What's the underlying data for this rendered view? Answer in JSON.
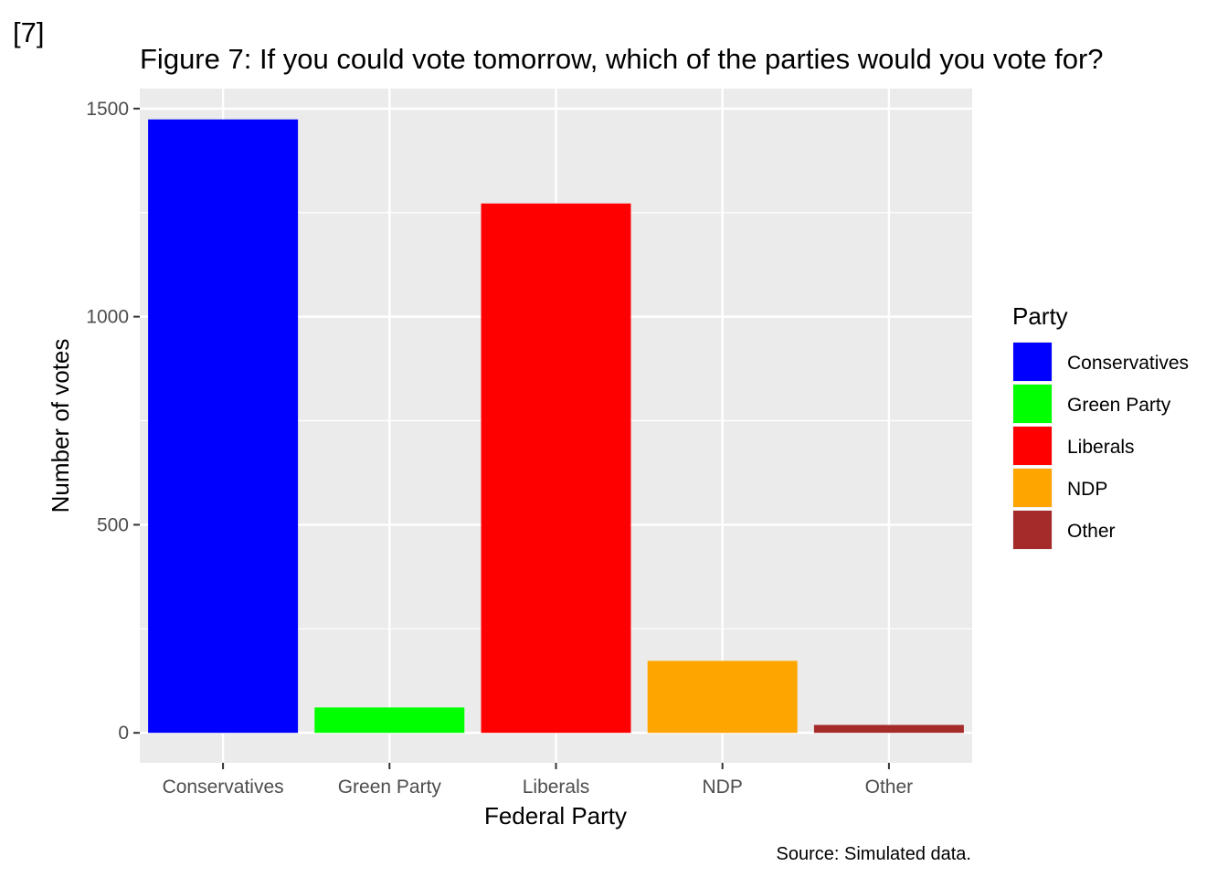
{
  "figure_tag": "[7]",
  "chart_data": {
    "type": "bar",
    "title": "Figure 7: If you could vote tomorrow, which of the parties would you vote for?",
    "xlabel": "Federal Party",
    "ylabel": "Number of votes",
    "caption": "Source: Simulated data.",
    "categories": [
      "Conservatives",
      "Green Party",
      "Liberals",
      "NDP",
      "Other"
    ],
    "values": [
      1474,
      61,
      1272,
      173,
      19
    ],
    "colors": [
      "#0000ff",
      "#00ff00",
      "#ff0000",
      "#ffa500",
      "#a52a2a"
    ],
    "ylim": [
      -72,
      1548
    ],
    "yticks": [
      0,
      500,
      1000,
      1500
    ],
    "grid": true,
    "legend": {
      "title": "Party",
      "placement": "right",
      "entries": [
        "Conservatives",
        "Green Party",
        "Liberals",
        "NDP",
        "Other"
      ]
    }
  }
}
